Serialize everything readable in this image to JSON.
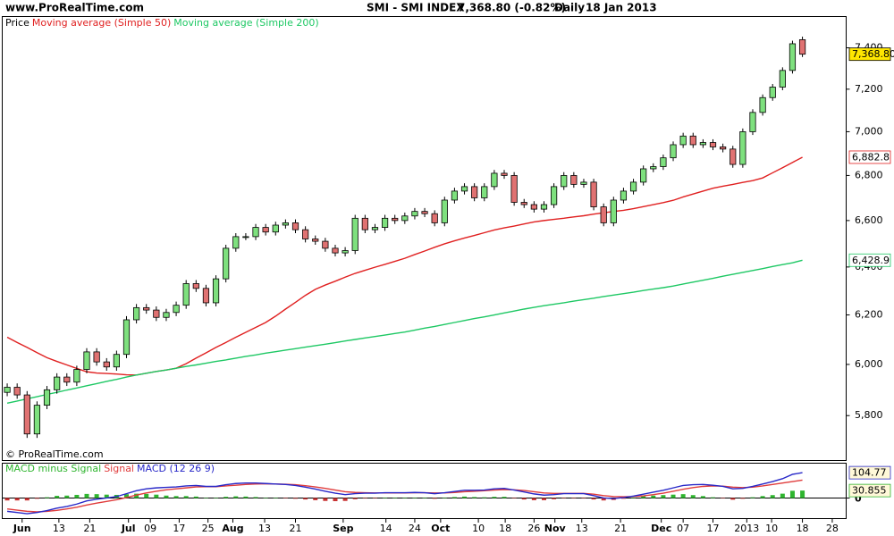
{
  "chart_data": [
    {
      "type": "candlestick",
      "source": "www.ProRealTime.com",
      "title": "SMI - SMI INDEX",
      "quote": "7,368.80 (-0.82%)",
      "period": "Daily",
      "date": "18 Jan 2013",
      "watermark": "© ProRealTime.com",
      "legend_label": "Price",
      "up_color": "#7ee07e",
      "down_color": "#e07272",
      "log_scale": true,
      "open": [
        5890,
        5910,
        5880,
        5730,
        5840,
        5900,
        5950,
        5930,
        5980,
        6050,
        6010,
        5990,
        6040,
        6180,
        6230,
        6220,
        6190,
        6210,
        6240,
        6330,
        6310,
        6250,
        6350,
        6480,
        6530,
        6530,
        6570,
        6550,
        6580,
        6590,
        6560,
        6520,
        6510,
        6480,
        6460,
        6470,
        6610,
        6560,
        6570,
        6610,
        6600,
        6620,
        6640,
        6630,
        6590,
        6690,
        6730,
        6750,
        6700,
        6750,
        6810,
        6800,
        6680,
        6670,
        6650,
        6670,
        6750,
        6800,
        6760,
        6770,
        6660,
        6590,
        6690,
        6730,
        6770,
        6830,
        6840,
        6880,
        6940,
        6980,
        6940,
        6950,
        6930,
        6920,
        6850,
        7000,
        7090,
        7160,
        7210,
        7290,
        7440
      ],
      "high": [
        5925,
        5925,
        5895,
        5855,
        5915,
        5965,
        5965,
        5995,
        6065,
        6065,
        6025,
        6055,
        6195,
        6245,
        6245,
        6235,
        6225,
        6255,
        6345,
        6345,
        6325,
        6365,
        6495,
        6545,
        6545,
        6585,
        6585,
        6595,
        6605,
        6605,
        6575,
        6535,
        6525,
        6495,
        6485,
        6625,
        6625,
        6585,
        6625,
        6625,
        6635,
        6655,
        6655,
        6645,
        6705,
        6745,
        6765,
        6765,
        6765,
        6825,
        6825,
        6815,
        6695,
        6685,
        6685,
        6765,
        6815,
        6815,
        6785,
        6785,
        6675,
        6705,
        6745,
        6785,
        6845,
        6855,
        6895,
        6955,
        6995,
        6995,
        6965,
        6965,
        6945,
        6935,
        7015,
        7105,
        7175,
        7225,
        7305,
        7435,
        7455
      ],
      "low": [
        5875,
        5865,
        5715,
        5715,
        5825,
        5885,
        5915,
        5915,
        5965,
        5995,
        5975,
        5975,
        6025,
        6165,
        6205,
        6175,
        6175,
        6195,
        6225,
        6295,
        6235,
        6235,
        6335,
        6465,
        6515,
        6515,
        6535,
        6535,
        6565,
        6545,
        6505,
        6495,
        6465,
        6445,
        6445,
        6455,
        6545,
        6545,
        6555,
        6585,
        6585,
        6605,
        6615,
        6575,
        6575,
        6675,
        6715,
        6685,
        6685,
        6735,
        6785,
        6665,
        6655,
        6635,
        6635,
        6655,
        6735,
        6745,
        6745,
        6645,
        6575,
        6575,
        6675,
        6715,
        6755,
        6815,
        6825,
        6865,
        6925,
        6925,
        6925,
        6915,
        6905,
        6835,
        6835,
        6985,
        7075,
        7145,
        7195,
        7275,
        7355
      ],
      "close": [
        5910,
        5880,
        5730,
        5840,
        5900,
        5950,
        5930,
        5980,
        6050,
        6010,
        5990,
        6040,
        6180,
        6230,
        6220,
        6190,
        6210,
        6240,
        6330,
        6310,
        6250,
        6350,
        6480,
        6530,
        6530,
        6570,
        6550,
        6580,
        6590,
        6560,
        6520,
        6510,
        6480,
        6460,
        6470,
        6610,
        6560,
        6570,
        6610,
        6600,
        6620,
        6640,
        6630,
        6590,
        6690,
        6730,
        6750,
        6700,
        6750,
        6810,
        6800,
        6680,
        6670,
        6650,
        6670,
        6750,
        6800,
        6760,
        6770,
        6660,
        6590,
        6690,
        6730,
        6770,
        6830,
        6840,
        6880,
        6940,
        6980,
        6940,
        6950,
        6930,
        6920,
        6850,
        7000,
        7090,
        7160,
        7210,
        7290,
        7420,
        7368.8
      ],
      "close_label": "7,368.80",
      "overlays": [
        {
          "name": "Moving average (Simple 50)",
          "color": "#e02020",
          "last_label": "6,882.8",
          "values": [
            6109,
            6088,
            6068,
            6047,
            6027,
            6012,
            5998,
            5984,
            5971,
            5966,
            5964,
            5962,
            5959,
            5958,
            5965,
            5972,
            5978,
            5985,
            6003,
            6025,
            6046,
            6068,
            6088,
            6109,
            6129,
            6149,
            6169,
            6195,
            6224,
            6252,
            6281,
            6306,
            6324,
            6340,
            6357,
            6373,
            6386,
            6399,
            6411,
            6424,
            6437,
            6453,
            6468,
            6484,
            6499,
            6512,
            6524,
            6535,
            6547,
            6559,
            6568,
            6576,
            6585,
            6594,
            6600,
            6605,
            6610,
            6616,
            6621,
            6628,
            6634,
            6640,
            6645,
            6652,
            6661,
            6670,
            6679,
            6689,
            6704,
            6717,
            6730,
            6743,
            6752,
            6760,
            6769,
            6777,
            6789,
            6812,
            6835,
            6859,
            6882.8
          ]
        },
        {
          "name": "Moving average (Simple 200)",
          "color": "#1ec864",
          "last_label": "6,428.9",
          "values": [
            5848,
            5856,
            5865,
            5873,
            5882,
            5890,
            5899,
            5907,
            5916,
            5924,
            5933,
            5941,
            5950,
            5958,
            5965,
            5972,
            5978,
            5985,
            5992,
            5998,
            6005,
            6012,
            6018,
            6025,
            6032,
            6038,
            6045,
            6051,
            6057,
            6063,
            6069,
            6075,
            6081,
            6087,
            6094,
            6100,
            6106,
            6112,
            6118,
            6124,
            6130,
            6138,
            6146,
            6153,
            6161,
            6169,
            6177,
            6185,
            6192,
            6200,
            6208,
            6216,
            6224,
            6231,
            6238,
            6244,
            6250,
            6257,
            6263,
            6269,
            6276,
            6282,
            6288,
            6294,
            6301,
            6307,
            6313,
            6320,
            6328,
            6336,
            6344,
            6352,
            6361,
            6369,
            6377,
            6385,
            6393,
            6402,
            6410,
            6418,
            6428.9
          ]
        }
      ],
      "xlim": [
        -0.5,
        84.4
      ],
      "xticks": [
        {
          "value": 1.5,
          "label": "Jun"
        },
        {
          "value": 5.2,
          "label": "13"
        },
        {
          "value": 8.3,
          "label": "21"
        },
        {
          "value": 12.2,
          "label": "Jul"
        },
        {
          "value": 14.4,
          "label": "09"
        },
        {
          "value": 17.3,
          "label": "17"
        },
        {
          "value": 20.2,
          "label": "25"
        },
        {
          "value": 22.7,
          "label": "Aug"
        },
        {
          "value": 25.9,
          "label": "13"
        },
        {
          "value": 29,
          "label": "21"
        },
        {
          "value": 33.8,
          "label": "Sep"
        },
        {
          "value": 38.1,
          "label": "14"
        },
        {
          "value": 41,
          "label": "24"
        },
        {
          "value": 43.6,
          "label": "Oct"
        },
        {
          "value": 47.4,
          "label": "10"
        },
        {
          "value": 50.1,
          "label": "18"
        },
        {
          "value": 53,
          "label": "26"
        },
        {
          "value": 55.1,
          "label": "Nov"
        },
        {
          "value": 57.8,
          "label": "13"
        },
        {
          "value": 61.7,
          "label": "21"
        },
        {
          "value": 65.8,
          "label": "Dec"
        },
        {
          "value": 68,
          "label": "07"
        },
        {
          "value": 71,
          "label": "17"
        },
        {
          "value": 74.4,
          "label": "2013"
        },
        {
          "value": 76.9,
          "label": "10"
        },
        {
          "value": 80,
          "label": "18"
        },
        {
          "value": 83,
          "label": "28"
        }
      ],
      "ylim": [
        5630,
        7555
      ],
      "yticks": [
        {
          "value": 5800,
          "label": "5,800"
        },
        {
          "value": 6000,
          "label": "6,000"
        },
        {
          "value": 6200,
          "label": "6,200"
        },
        {
          "value": 6400,
          "label": "6,400"
        },
        {
          "value": 6600,
          "label": "6,600"
        },
        {
          "value": 6800,
          "label": "6,800"
        },
        {
          "value": 7000,
          "label": "7,000"
        },
        {
          "value": 7200,
          "label": "7,200"
        },
        {
          "value": 7400,
          "label": "7,400"
        }
      ]
    },
    {
      "type": "macd",
      "ylim": [
        -85,
        144
      ],
      "yticks": [
        0
      ],
      "series": [
        {
          "name": "MACD minus Signal",
          "kind": "bar",
          "color": "#2fb52f",
          "negative_color": "#c83232",
          "last_label": "30.855",
          "values": [
            -10,
            -10,
            -10,
            -3,
            3,
            9,
            10,
            13,
            17,
            16,
            14,
            13,
            16,
            18,
            17,
            14,
            10,
            8,
            8,
            6,
            1,
            1,
            5,
            7,
            6,
            4,
            1,
            0,
            -1,
            -3,
            -6,
            -9,
            -12,
            -13,
            -12,
            -5,
            -2,
            -1,
            1,
            1,
            1,
            1,
            0,
            -3,
            1,
            4,
            6,
            4,
            3,
            5,
            5,
            -1,
            -6,
            -9,
            -9,
            -5,
            -1,
            -1,
            -1,
            -6,
            -10,
            -8,
            -3,
            2,
            7,
            10,
            12,
            14,
            16,
            12,
            8,
            3,
            -1,
            -7,
            -3,
            3,
            8,
            12,
            18,
            30,
            30.855
          ]
        },
        {
          "name": "Signal",
          "kind": "line",
          "color": "#e03c3c",
          "values": [
            -45,
            -50,
            -55,
            -57,
            -55,
            -51,
            -45,
            -38,
            -29,
            -21,
            -14,
            -7,
            2,
            12,
            21,
            28,
            34,
            38,
            42,
            46,
            47,
            47,
            50,
            53,
            56,
            58,
            59,
            58,
            57,
            55,
            51,
            46,
            40,
            33,
            26,
            23,
            22,
            21,
            21,
            21,
            21,
            22,
            22,
            21,
            21,
            23,
            26,
            28,
            30,
            33,
            35,
            34,
            31,
            26,
            21,
            19,
            19,
            19,
            19,
            16,
            10,
            6,
            5,
            6,
            9,
            14,
            20,
            28,
            36,
            43,
            48,
            50,
            49,
            45,
            43,
            45,
            50,
            56,
            62,
            68,
            73.915
          ]
        },
        {
          "name": "MACD (12 26 9)",
          "kind": "line",
          "color": "#2828c8",
          "last_label": "104.77",
          "values": [
            -55,
            -60,
            -65,
            -60,
            -52,
            -42,
            -35,
            -25,
            -12,
            -5,
            0,
            6,
            18,
            30,
            38,
            42,
            44,
            46,
            50,
            52,
            48,
            48,
            55,
            60,
            62,
            62,
            60,
            58,
            56,
            52,
            45,
            37,
            28,
            20,
            14,
            18,
            20,
            20,
            22,
            22,
            22,
            23,
            22,
            18,
            22,
            27,
            32,
            32,
            33,
            38,
            40,
            33,
            25,
            17,
            12,
            14,
            18,
            18,
            18,
            10,
            0,
            -2,
            2,
            8,
            16,
            24,
            32,
            42,
            52,
            55,
            56,
            53,
            48,
            38,
            40,
            48,
            58,
            68,
            80,
            98,
            104.77
          ]
        }
      ]
    }
  ]
}
